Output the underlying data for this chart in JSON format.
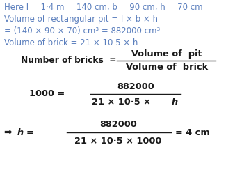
{
  "background_color": "#ffffff",
  "text_color_blue": "#5b7fbd",
  "text_color_black": "#1a1a1a",
  "line1": "Here l = 1·4 m = 140 cm, b = 90 cm, h = 70 cm",
  "line2": "Volume of rectangular pit = l × b × h",
  "line3": "= (140 × 90 × 70) cm³ = 882000 cm³",
  "line4": "Volume of brick = 21 × 10.5 × h",
  "fontsize_blue": 8.5,
  "fontsize_black": 8.8,
  "frac1_lhs": "Number of bricks  =",
  "frac1_num": "Volume of  pit",
  "frac1_den": "Volume of  brick",
  "frac2_lhs": "1000 =",
  "frac2_num": "882000",
  "frac2_den_pre": "21 × 10·5 × ",
  "frac2_den_h": "h",
  "frac3_arrow": "⇒",
  "frac3_h": "h",
  "frac3_eq": "=",
  "frac3_num": "882000",
  "frac3_den": "21 × 10·5 × 1000",
  "frac3_result": "= 4 cm"
}
